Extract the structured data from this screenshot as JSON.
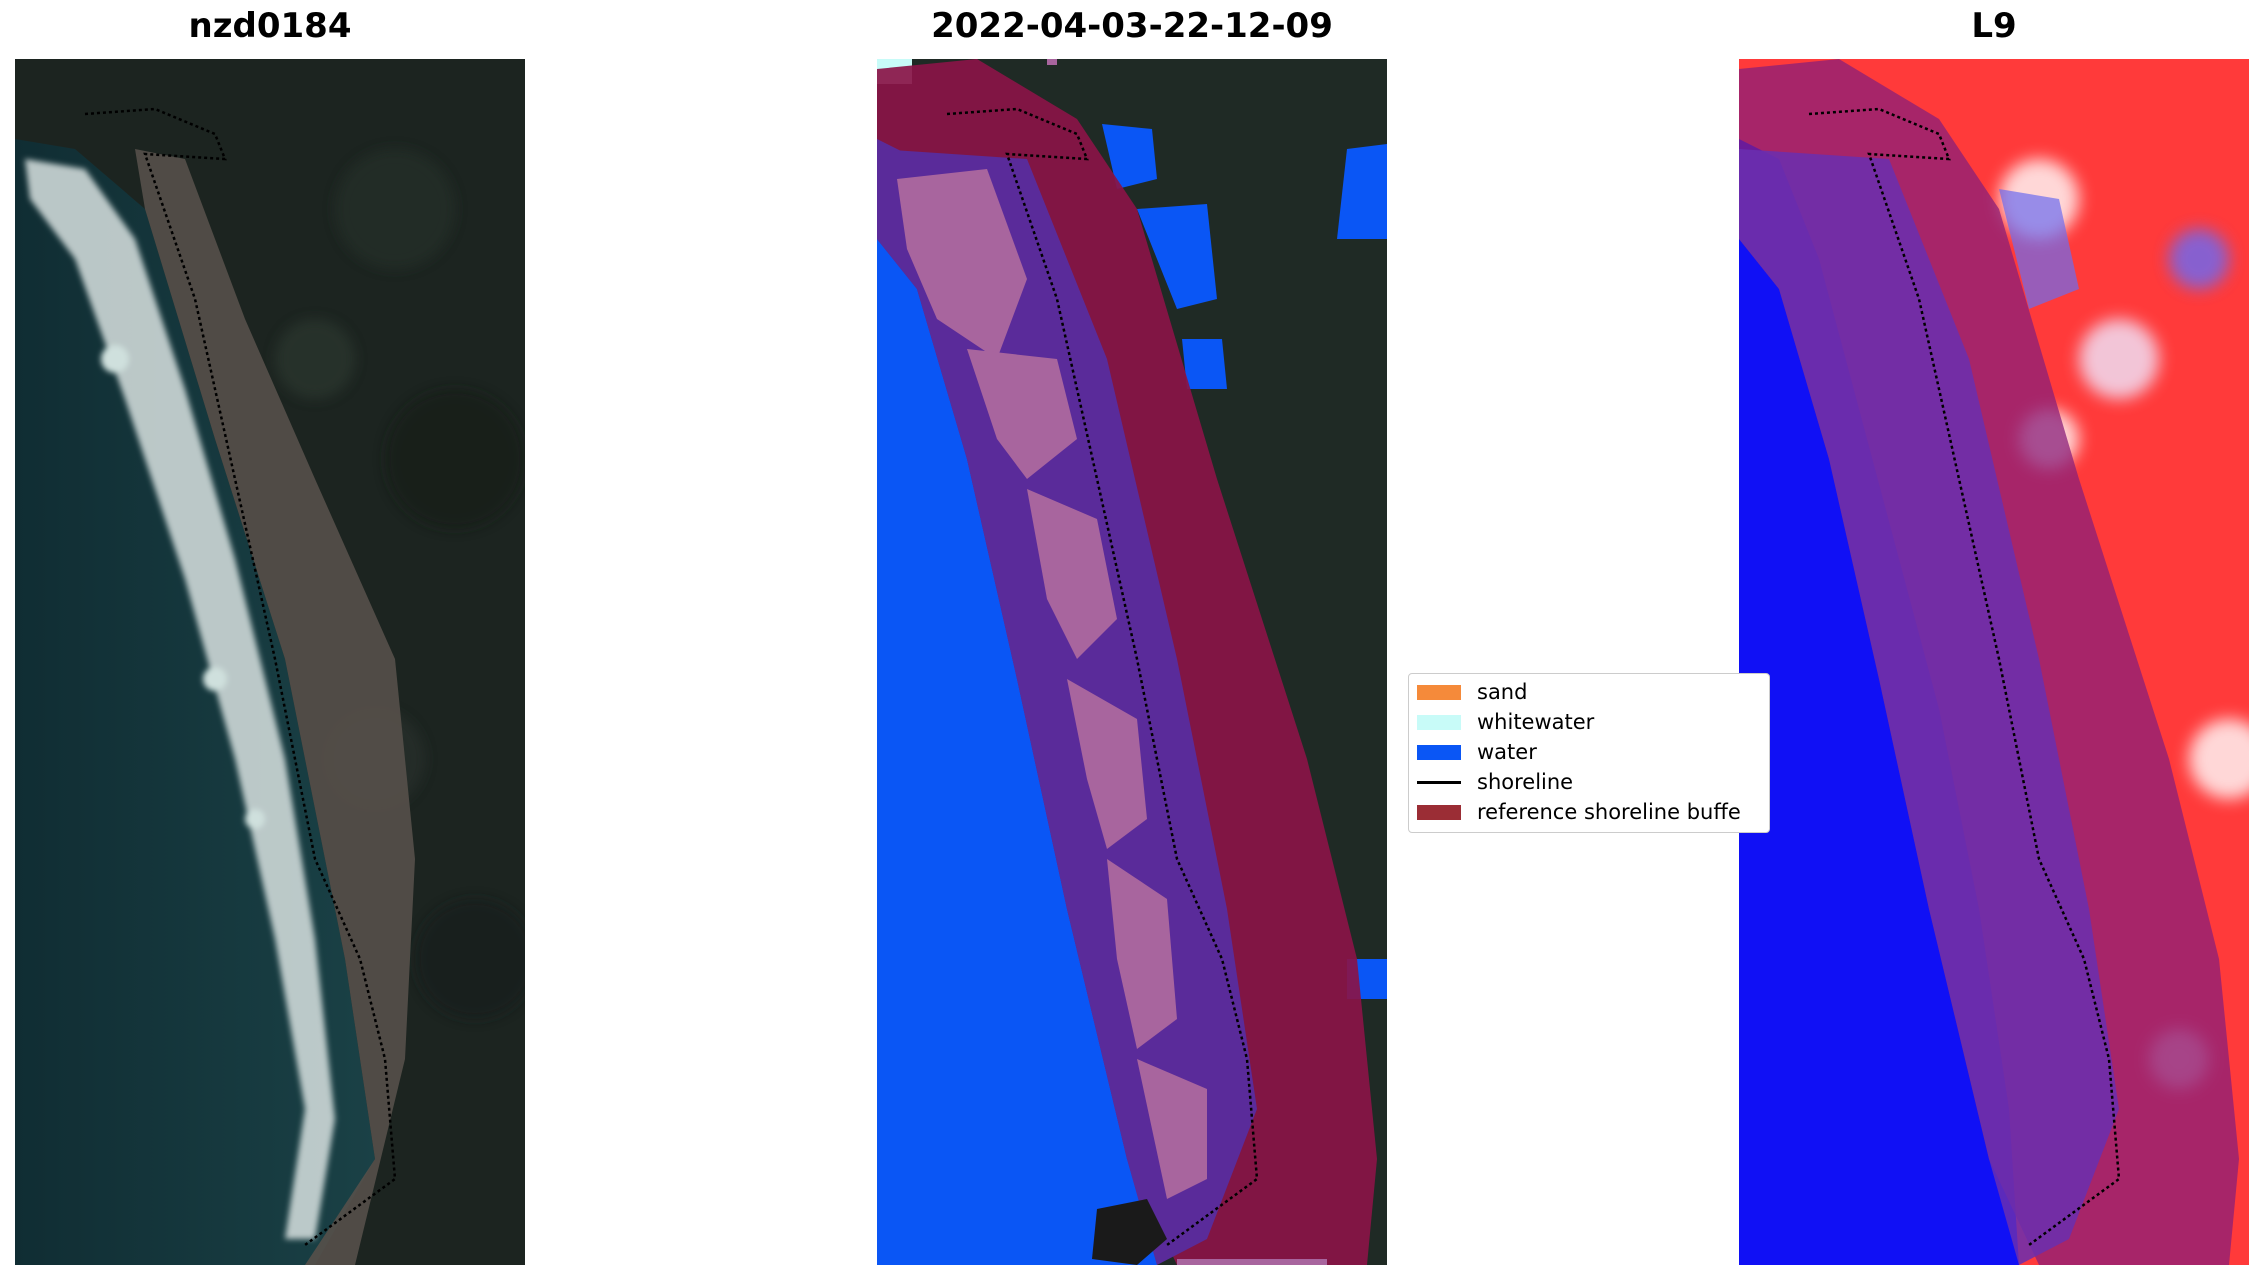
{
  "panels": [
    {
      "title": "nzd0184"
    },
    {
      "title": "2022-04-03-22-12-09"
    },
    {
      "title": "L9"
    }
  ],
  "legend": {
    "items": [
      {
        "label": "sand",
        "color": "#f58a3a",
        "kind": "patch"
      },
      {
        "label": "whitewater",
        "color": "#c8fbf8",
        "kind": "patch"
      },
      {
        "label": "water",
        "color": "#0a56f5",
        "kind": "patch"
      },
      {
        "label": "shoreline",
        "color": "#000000",
        "kind": "line"
      },
      {
        "label": "reference shoreline buffe",
        "color": "#9b2d35",
        "kind": "patch"
      }
    ]
  },
  "colors": {
    "land_dark": "#1c2420",
    "ocean_dark": "#13343a",
    "beach": "#57504a",
    "surf": "#d8e2e0",
    "water_class": "#0a56f5",
    "buffer": "#8a1447",
    "overlap": "#5a2b9a",
    "sand_overlap": "#a8659e",
    "index_red": "#ff2020",
    "index_blue": "#1010f5",
    "index_purple": "#6a2fb0"
  }
}
